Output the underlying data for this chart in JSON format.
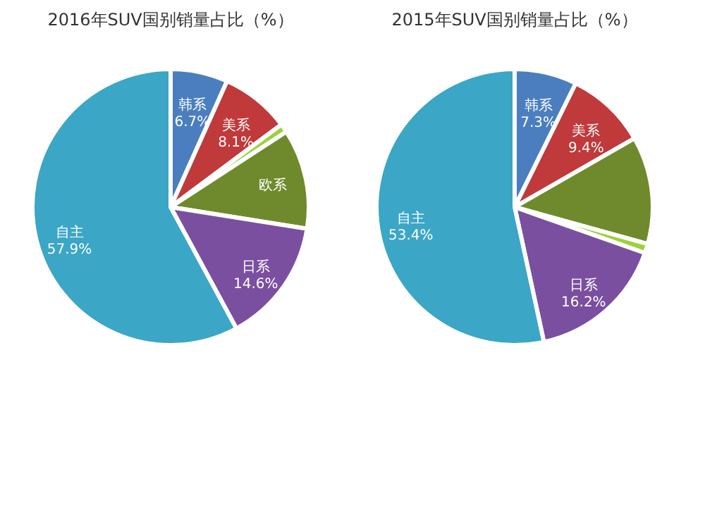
{
  "chart_data": [
    {
      "type": "pie",
      "title": "2016年SUV国别销量占比（%）",
      "categories": [
        "韩系",
        "美系",
        null,
        "欧系",
        "日系",
        "自主"
      ],
      "values": [
        6.7,
        8.1,
        1.0,
        11.7,
        14.6,
        57.9
      ],
      "colors": [
        "#4a7ebf",
        "#c0393b",
        "#9bd13a",
        "#6f8a2c",
        "#7a4fa0",
        "#3ba6c6"
      ],
      "value_labels": [
        "6.7%",
        "8.1%",
        null,
        null,
        "14.6%",
        "57.9%"
      ]
    },
    {
      "type": "pie",
      "title": "2015年SUV国别销量占比（%）",
      "categories": [
        "韩系",
        "美系",
        null,
        null,
        "日系",
        "自主"
      ],
      "values": [
        7.3,
        9.4,
        12.6,
        1.1,
        16.2,
        53.4
      ],
      "colors": [
        "#4a7ebf",
        "#c0393b",
        "#6f8a2c",
        "#9bd13a",
        "#7a4fa0",
        "#3ba6c6"
      ],
      "value_labels": [
        "7.3%",
        "9.4%",
        null,
        null,
        "16.2%",
        "53.4%"
      ]
    }
  ]
}
